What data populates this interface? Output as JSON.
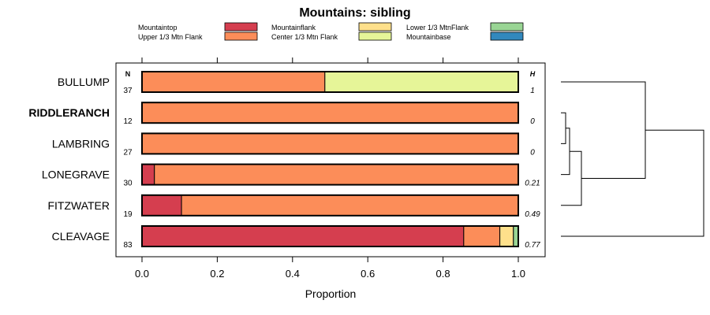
{
  "chart_data": {
    "type": "bar",
    "orientation": "horizontal",
    "stacked": true,
    "title": "Mountains: sibling",
    "xlabel": "Proportion",
    "ylabel": "",
    "xlim": [
      0,
      1
    ],
    "xticks": [
      "0.0",
      "0.2",
      "0.4",
      "0.6",
      "0.8",
      "1.0"
    ],
    "n_header": "N",
    "h_header": "H",
    "legend_position": "top",
    "legend": [
      {
        "name": "Mountaintop",
        "color": "#d53e4f"
      },
      {
        "name": "Upper 1/3 Mtn Flank",
        "color": "#fc8d59"
      },
      {
        "name": "Mountainflank",
        "color": "#fee08b"
      },
      {
        "name": "Center 1/3 Mtn Flank",
        "color": "#e6f598"
      },
      {
        "name": "Lower 1/3 MtnFlank",
        "color": "#99d594"
      },
      {
        "name": "Mountainbase",
        "color": "#3288bd"
      }
    ],
    "rows": [
      {
        "label": "BULLUMP",
        "bold": false,
        "n": "37",
        "h": "1",
        "values": [
          0,
          0.486,
          0,
          0.514,
          0,
          0
        ]
      },
      {
        "label": "RIDDLERANCH",
        "bold": true,
        "n": "12",
        "h": "0",
        "values": [
          0,
          1.0,
          0,
          0,
          0,
          0
        ]
      },
      {
        "label": "LAMBRING",
        "bold": false,
        "n": "27",
        "h": "0",
        "values": [
          0,
          1.0,
          0,
          0,
          0,
          0
        ]
      },
      {
        "label": "LONEGRAVE",
        "bold": false,
        "n": "30",
        "h": "0.21",
        "values": [
          0.033,
          0.967,
          0,
          0,
          0,
          0
        ]
      },
      {
        "label": "FITZWATER",
        "bold": false,
        "n": "19",
        "h": "0.49",
        "values": [
          0.105,
          0.895,
          0,
          0,
          0,
          0
        ]
      },
      {
        "label": "CLEAVAGE",
        "bold": false,
        "n": "83",
        "h": "0.77",
        "values": [
          0.855,
          0.096,
          0.036,
          0,
          0.013,
          0
        ]
      }
    ],
    "dendrogram": true
  }
}
